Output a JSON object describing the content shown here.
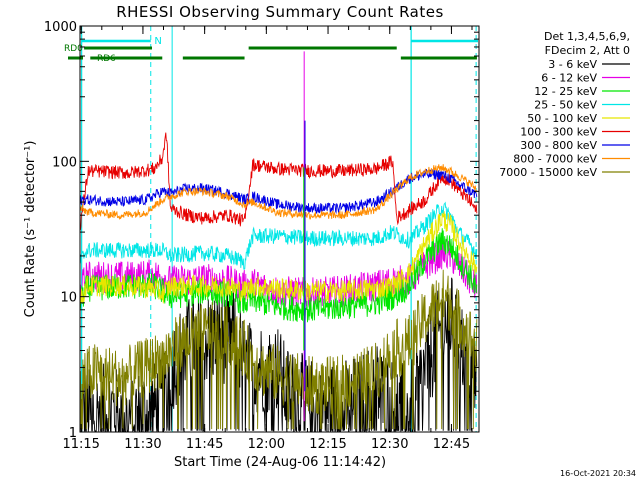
{
  "chart_data": {
    "type": "line",
    "title": "RHESSI Observing Summary Count Rates",
    "xlabel": "Start Time (24-Aug-06 11:14:42)",
    "ylabel": "Count Rate (s⁻¹ detector⁻¹)",
    "x_ticks": [
      "11:15",
      "11:30",
      "11:45",
      "12:00",
      "12:15",
      "12:30",
      "12:45"
    ],
    "x_tick_minutes": [
      0.3,
      15.3,
      30.3,
      45.3,
      60.3,
      75.3,
      90.3
    ],
    "xlim_minutes": [
      0,
      97
    ],
    "y_scale": "log",
    "ylim": [
      1,
      1000
    ],
    "y_ticks": [
      1,
      10,
      100,
      1000
    ],
    "y_tick_labels": [
      "1",
      "10",
      "100",
      "1000"
    ],
    "legend_header": [
      "Det 1,3,4,5,6,9,",
      "FDecim 2, Att 0"
    ],
    "legend_position": "right",
    "series": [
      {
        "name": "3 - 6 keV",
        "color": "#000000",
        "points": [
          [
            0,
            1.3
          ],
          [
            8,
            1.5
          ],
          [
            10,
            1.2
          ],
          [
            16,
            1.4
          ],
          [
            20,
            1.6
          ],
          [
            22,
            3
          ],
          [
            26,
            4.5
          ],
          [
            32,
            5
          ],
          [
            38,
            5
          ],
          [
            40,
            3
          ],
          [
            48,
            3
          ],
          [
            50,
            2
          ],
          [
            56,
            1.6
          ],
          [
            62,
            1.5
          ],
          [
            68,
            1.7
          ],
          [
            72,
            2.2
          ],
          [
            76,
            1.6
          ],
          [
            80,
            1.4
          ],
          [
            85,
            3.5
          ],
          [
            88,
            6
          ],
          [
            90,
            7
          ],
          [
            92,
            5
          ],
          [
            95,
            3
          ],
          [
            97,
            2.2
          ]
        ]
      },
      {
        "name": "6 - 12 keV",
        "color": "#e600e6",
        "points": [
          [
            0,
            11
          ],
          [
            1.5,
            14
          ],
          [
            12,
            14
          ],
          [
            18,
            14.5
          ],
          [
            20,
            14
          ],
          [
            22,
            13
          ],
          [
            30,
            13.5
          ],
          [
            36,
            13
          ],
          [
            40,
            12
          ],
          [
            42,
            12.5
          ],
          [
            48,
            11
          ],
          [
            56,
            10.5
          ],
          [
            64,
            11
          ],
          [
            72,
            12
          ],
          [
            76,
            13
          ],
          [
            80,
            13
          ],
          [
            84,
            17
          ],
          [
            88,
            21
          ],
          [
            90,
            20
          ],
          [
            92,
            17
          ],
          [
            95,
            13
          ],
          [
            97,
            11
          ]
        ]
      },
      {
        "name": "12 - 25 keV",
        "color": "#00e600",
        "points": [
          [
            0,
            9
          ],
          [
            1.5,
            11.5
          ],
          [
            12,
            12
          ],
          [
            18,
            12
          ],
          [
            20,
            11
          ],
          [
            22,
            10
          ],
          [
            30,
            11
          ],
          [
            36,
            10.5
          ],
          [
            40,
            9
          ],
          [
            42,
            9.5
          ],
          [
            48,
            8.5
          ],
          [
            56,
            8
          ],
          [
            64,
            8.5
          ],
          [
            72,
            9
          ],
          [
            76,
            10
          ],
          [
            80,
            12
          ],
          [
            84,
            19
          ],
          [
            88,
            26
          ],
          [
            90,
            24
          ],
          [
            92,
            19
          ],
          [
            95,
            14
          ],
          [
            97,
            10
          ]
        ]
      },
      {
        "name": "25 - 50 keV",
        "color": "#00e6e6",
        "points": [
          [
            0,
            18
          ],
          [
            1.5,
            22
          ],
          [
            12,
            22
          ],
          [
            18,
            22
          ],
          [
            20,
            22
          ],
          [
            22,
            20
          ],
          [
            30,
            21
          ],
          [
            36,
            20
          ],
          [
            40,
            18
          ],
          [
            42,
            28
          ],
          [
            48,
            28
          ],
          [
            56,
            27
          ],
          [
            64,
            27
          ],
          [
            72,
            27
          ],
          [
            76,
            30
          ],
          [
            80,
            26
          ],
          [
            84,
            34
          ],
          [
            88,
            46
          ],
          [
            90,
            40
          ],
          [
            92,
            30
          ],
          [
            95,
            24
          ],
          [
            97,
            20
          ]
        ]
      },
      {
        "name": "50 - 100 keV",
        "color": "#e6e600",
        "points": [
          [
            0,
            9
          ],
          [
            1.5,
            12
          ],
          [
            12,
            12
          ],
          [
            18,
            11.5
          ],
          [
            20,
            10.5
          ],
          [
            22,
            12
          ],
          [
            30,
            12
          ],
          [
            36,
            12
          ],
          [
            40,
            11
          ],
          [
            42,
            12
          ],
          [
            48,
            11.5
          ],
          [
            56,
            11
          ],
          [
            64,
            11
          ],
          [
            72,
            11.5
          ],
          [
            76,
            12
          ],
          [
            80,
            15
          ],
          [
            84,
            25
          ],
          [
            88,
            38
          ],
          [
            90,
            34
          ],
          [
            92,
            26
          ],
          [
            95,
            19
          ],
          [
            97,
            15
          ]
        ]
      },
      {
        "name": "100 - 300 keV",
        "color": "#e60000",
        "points": [
          [
            0,
            33
          ],
          [
            2,
            85
          ],
          [
            12,
            82
          ],
          [
            18,
            88
          ],
          [
            20,
            105
          ],
          [
            21,
            160
          ],
          [
            22,
            45
          ],
          [
            26,
            40
          ],
          [
            30,
            38
          ],
          [
            36,
            40
          ],
          [
            40,
            36
          ],
          [
            42,
            95
          ],
          [
            48,
            88
          ],
          [
            56,
            85
          ],
          [
            64,
            85
          ],
          [
            72,
            88
          ],
          [
            76,
            100
          ],
          [
            77,
            38
          ],
          [
            84,
            52
          ],
          [
            88,
            78
          ],
          [
            90,
            72
          ],
          [
            92,
            62
          ],
          [
            95,
            50
          ],
          [
            97,
            40
          ]
        ]
      },
      {
        "name": "300 - 800 keV",
        "color": "#0000e6",
        "points": [
          [
            0,
            52
          ],
          [
            2,
            52
          ],
          [
            10,
            50
          ],
          [
            16,
            52
          ],
          [
            20,
            60
          ],
          [
            22,
            58
          ],
          [
            26,
            63
          ],
          [
            30,
            63
          ],
          [
            36,
            58
          ],
          [
            40,
            52
          ],
          [
            42,
            55
          ],
          [
            48,
            48
          ],
          [
            56,
            45
          ],
          [
            64,
            45
          ],
          [
            72,
            50
          ],
          [
            76,
            60
          ],
          [
            80,
            75
          ],
          [
            84,
            80
          ],
          [
            88,
            80
          ],
          [
            90,
            75
          ],
          [
            92,
            68
          ],
          [
            95,
            60
          ],
          [
            97,
            55
          ]
        ]
      },
      {
        "name": "800 - 7000 keV",
        "color": "#ff8c00",
        "points": [
          [
            0,
            45
          ],
          [
            2,
            42
          ],
          [
            10,
            40
          ],
          [
            16,
            42
          ],
          [
            20,
            52
          ],
          [
            22,
            55
          ],
          [
            26,
            60
          ],
          [
            30,
            60
          ],
          [
            36,
            55
          ],
          [
            40,
            48
          ],
          [
            42,
            50
          ],
          [
            48,
            42
          ],
          [
            56,
            40
          ],
          [
            64,
            40
          ],
          [
            72,
            44
          ],
          [
            76,
            58
          ],
          [
            80,
            75
          ],
          [
            84,
            85
          ],
          [
            88,
            90
          ],
          [
            90,
            85
          ],
          [
            92,
            78
          ],
          [
            95,
            68
          ],
          [
            97,
            60
          ]
        ]
      },
      {
        "name": "7000 - 15000 keV",
        "color": "#808000",
        "points": [
          [
            0,
            2.5
          ],
          [
            4,
            2.8
          ],
          [
            10,
            2.5
          ],
          [
            16,
            3
          ],
          [
            20,
            3.5
          ],
          [
            22,
            4
          ],
          [
            26,
            5
          ],
          [
            32,
            5.5
          ],
          [
            38,
            5
          ],
          [
            40,
            4
          ],
          [
            44,
            3
          ],
          [
            50,
            2.5
          ],
          [
            56,
            2.2
          ],
          [
            62,
            2.2
          ],
          [
            68,
            2.5
          ],
          [
            72,
            2.8
          ],
          [
            76,
            4
          ],
          [
            80,
            4.5
          ],
          [
            84,
            7
          ],
          [
            88,
            10
          ],
          [
            90,
            9
          ],
          [
            92,
            7
          ],
          [
            95,
            5
          ],
          [
            97,
            4
          ]
        ]
      }
    ],
    "annotations": [
      {
        "text": "RD0",
        "color": "#007700"
      },
      {
        "text": "RD6",
        "color": "#007700"
      },
      {
        "text": "N",
        "color": "#00e6e6"
      }
    ],
    "timestamp": "16-Oct-2021 20:34"
  }
}
